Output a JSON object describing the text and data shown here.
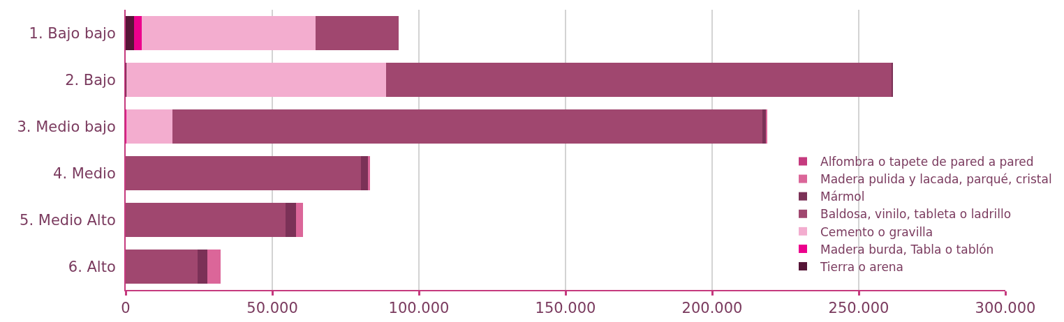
{
  "chart_data": {
    "type": "bar",
    "orientation": "horizontal",
    "stacked": true,
    "categories": [
      "1. Bajo bajo",
      "2. Bajo",
      "3. Medio bajo",
      "4. Medio",
      "5. Medio Alto",
      "6. Alto"
    ],
    "series": [
      {
        "name": "Tierra o arena",
        "color": "#561537",
        "values": [
          2800,
          300,
          0,
          0,
          0,
          0
        ]
      },
      {
        "name": "Madera burda, Tabla o tablón",
        "color": "#ec008c",
        "values": [
          2600,
          0,
          300,
          0,
          0,
          0
        ]
      },
      {
        "name": "Cemento o gravilla",
        "color": "#f3adcf",
        "values": [
          59300,
          88400,
          15700,
          0,
          0,
          0
        ]
      },
      {
        "name": "Baldosa, vinilo, tableta o ladrillo",
        "color": "#a0476f",
        "values": [
          28400,
          172500,
          201100,
          80200,
          54600,
          24600
        ]
      },
      {
        "name": "Mármol",
        "color": "#7b3157",
        "values": [
          0,
          500,
          1400,
          2300,
          3500,
          3300
        ]
      },
      {
        "name": "Madera pulida y lacada, parqué, cristal",
        "color": "#db6699",
        "values": [
          0,
          0,
          300,
          900,
          2300,
          4500
        ]
      },
      {
        "name": "Alfombra o tapete de pared a pared",
        "color": "#c53a7e",
        "values": [
          0,
          0,
          0,
          0,
          0,
          0
        ]
      }
    ],
    "xlim": [
      0,
      300000
    ],
    "xticks": [
      0,
      {
        "value": 50000,
        "label": "50.000"
      },
      {
        "value": 100000,
        "label": "100.000"
      },
      {
        "value": 150000,
        "label": "150.000"
      },
      {
        "value": 200000,
        "label": "200.000"
      },
      {
        "value": 250000,
        "label": "250.000"
      },
      {
        "value": 300000,
        "label": "300.000"
      }
    ],
    "grid": "x",
    "legend": "bottom right"
  }
}
